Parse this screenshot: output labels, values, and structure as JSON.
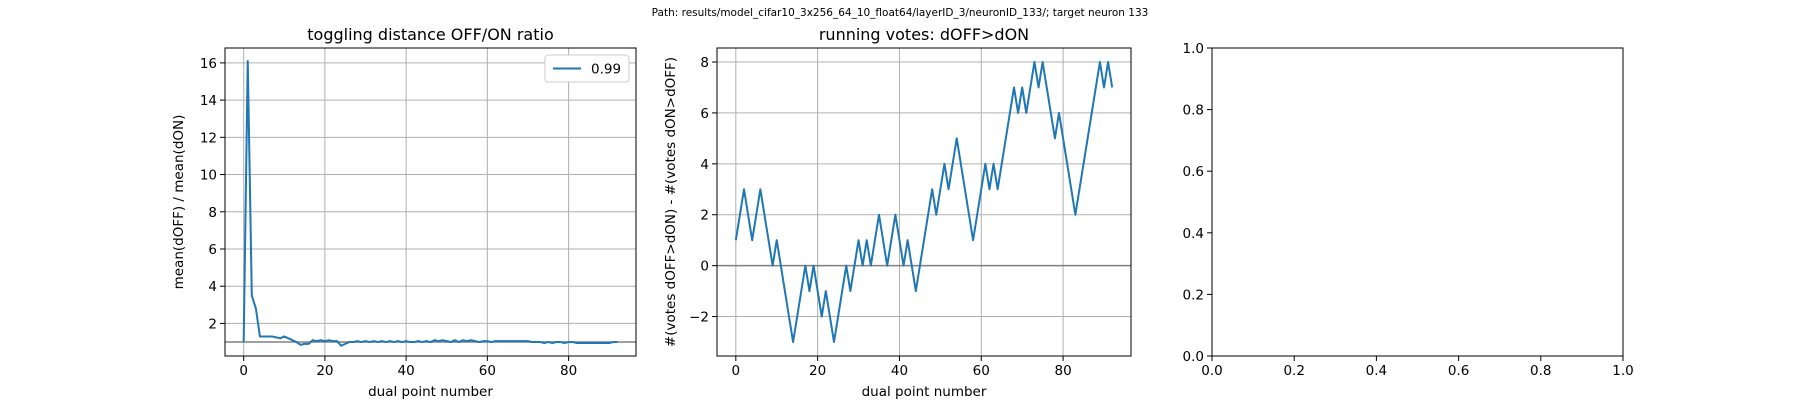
{
  "suptitle": "Path: results/model_cifar10_3x256_64_10_float64/layerID_3/neuronID_133/; target neuron 133",
  "colors": {
    "series": "#1f77b4",
    "grid": "#b0b0b0",
    "refline": "#808080",
    "axis": "#000000"
  },
  "chart_data": [
    {
      "type": "line",
      "title": "toggling distance OFF/ON ratio",
      "xlabel": "dual point number",
      "ylabel": "mean(dOFF) / mean(dON)",
      "xlim": [
        -4.6,
        96.6
      ],
      "ylim": [
        0.25,
        16.8
      ],
      "xticks": [
        0,
        20,
        40,
        60,
        80
      ],
      "yticks": [
        2,
        4,
        6,
        8,
        10,
        12,
        14,
        16
      ],
      "grid": true,
      "legend": {
        "placement": "top-right",
        "entries": [
          "0.99"
        ]
      },
      "hline": 1.0,
      "series": [
        {
          "name": "0.99",
          "x": [
            0,
            1,
            2,
            3,
            4,
            5,
            6,
            7,
            8,
            9,
            10,
            11,
            12,
            13,
            14,
            15,
            16,
            17,
            18,
            19,
            20,
            21,
            22,
            23,
            24,
            25,
            26,
            27,
            28,
            29,
            30,
            31,
            32,
            33,
            34,
            35,
            36,
            37,
            38,
            39,
            40,
            41,
            42,
            43,
            44,
            45,
            46,
            47,
            48,
            49,
            50,
            51,
            52,
            53,
            54,
            55,
            56,
            57,
            58,
            59,
            60,
            61,
            62,
            63,
            64,
            65,
            66,
            67,
            68,
            69,
            70,
            71,
            72,
            73,
            74,
            75,
            76,
            77,
            78,
            79,
            80,
            81,
            82,
            83,
            84,
            85,
            86,
            87,
            88,
            89,
            90,
            91,
            92
          ],
          "y": [
            1.0,
            16.1,
            3.5,
            2.8,
            1.3,
            1.3,
            1.3,
            1.3,
            1.25,
            1.2,
            1.3,
            1.2,
            1.1,
            1.0,
            0.85,
            0.9,
            0.9,
            1.1,
            1.05,
            1.1,
            1.05,
            1.1,
            1.05,
            1.05,
            0.8,
            0.9,
            1.0,
            1.0,
            1.05,
            1.0,
            1.05,
            1.0,
            1.05,
            1.0,
            1.05,
            1.0,
            1.05,
            1.0,
            1.05,
            1.0,
            1.05,
            1.0,
            1.0,
            1.05,
            1.0,
            1.05,
            1.0,
            1.1,
            1.05,
            1.1,
            1.05,
            1.0,
            1.1,
            1.0,
            1.1,
            1.05,
            1.1,
            1.05,
            1.0,
            1.05,
            1.05,
            1.0,
            1.05,
            1.05,
            1.05,
            1.05,
            1.05,
            1.05,
            1.05,
            1.05,
            1.05,
            1.0,
            1.0,
            1.0,
            0.95,
            1.0,
            0.95,
            1.0,
            1.0,
            0.95,
            1.0,
            1.0,
            0.95,
            0.95,
            0.95,
            0.95,
            0.95,
            0.95,
            0.95,
            0.95,
            0.95,
            1.0,
            1.0
          ]
        }
      ]
    },
    {
      "type": "line",
      "title": "running votes: dOFF>dON",
      "xlabel": "dual point number",
      "ylabel": "#(votes dOFF>dON) - #(votes dON>dOFF)",
      "xlim": [
        -4.6,
        96.6
      ],
      "ylim": [
        -3.55,
        8.55
      ],
      "xticks": [
        0,
        20,
        40,
        60,
        80
      ],
      "yticks": [
        -2,
        0,
        2,
        4,
        6,
        8
      ],
      "grid": true,
      "hline": 0,
      "series": [
        {
          "x": [
            0,
            1,
            2,
            3,
            4,
            5,
            6,
            7,
            8,
            9,
            10,
            11,
            12,
            13,
            14,
            15,
            16,
            17,
            18,
            19,
            20,
            21,
            22,
            23,
            24,
            25,
            26,
            27,
            28,
            29,
            30,
            31,
            32,
            33,
            34,
            35,
            36,
            37,
            38,
            39,
            40,
            41,
            42,
            43,
            44,
            45,
            46,
            47,
            48,
            49,
            50,
            51,
            52,
            53,
            54,
            55,
            56,
            57,
            58,
            59,
            60,
            61,
            62,
            63,
            64,
            65,
            66,
            67,
            68,
            69,
            70,
            71,
            72,
            73,
            74,
            75,
            76,
            77,
            78,
            79,
            80,
            81,
            82,
            83,
            84,
            85,
            86,
            87,
            88,
            89,
            90,
            91,
            92
          ],
          "y": [
            1,
            2,
            3,
            2,
            1,
            2,
            3,
            2,
            1,
            0,
            1,
            0,
            -1,
            -2,
            -3,
            -2,
            -1,
            0,
            -1,
            0,
            -1,
            -2,
            -1,
            -2,
            -3,
            -2,
            -1,
            0,
            -1,
            0,
            1,
            0,
            1,
            0,
            1,
            2,
            1,
            0,
            1,
            2,
            1,
            0,
            1,
            0,
            -1,
            0,
            1,
            2,
            3,
            2,
            3,
            4,
            3,
            4,
            5,
            4,
            3,
            2,
            1,
            2,
            3,
            4,
            3,
            4,
            3,
            4,
            5,
            6,
            7,
            6,
            7,
            6,
            7,
            8,
            7,
            8,
            7,
            6,
            5,
            6,
            5,
            4,
            3,
            2,
            3,
            4,
            5,
            6,
            7,
            8,
            7,
            8,
            7
          ]
        }
      ]
    },
    {
      "type": "line",
      "title": "",
      "xlim": [
        0,
        1
      ],
      "ylim": [
        0,
        1
      ],
      "xticks": [
        0.0,
        0.2,
        0.4,
        0.6,
        0.8,
        1.0
      ],
      "yticks": [
        0.0,
        0.2,
        0.4,
        0.6,
        0.8,
        1.0
      ],
      "grid": false,
      "series": []
    }
  ]
}
